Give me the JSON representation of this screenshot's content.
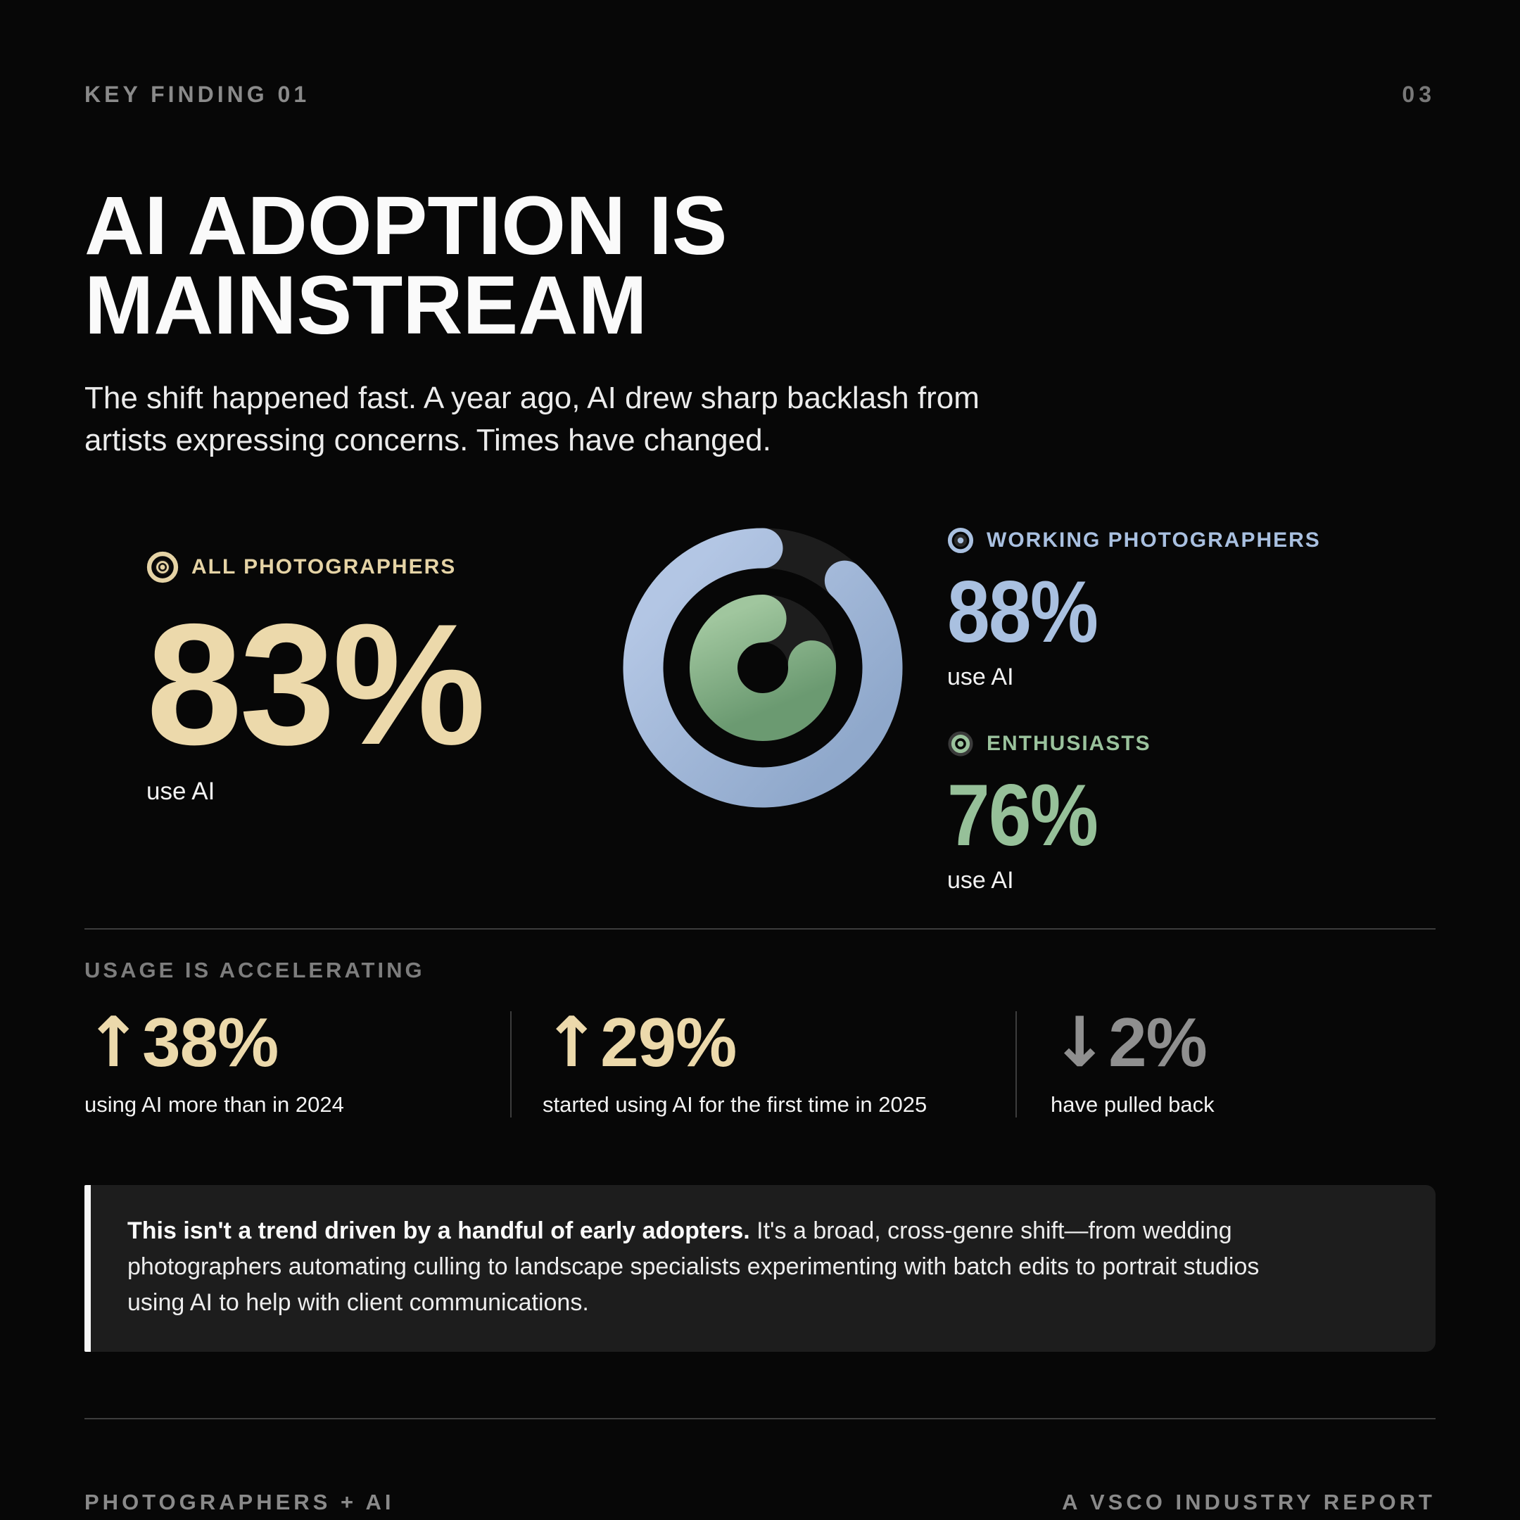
{
  "header": {
    "kicker": "KEY FINDING 01",
    "page_number": "03"
  },
  "title": {
    "line1": "AI ADOPTION IS",
    "line2": "MAINSTREAM"
  },
  "subtitle": {
    "line1": "The shift happened fast. A year ago, AI drew sharp backlash from",
    "line2": "artists expressing concerns. Times have changed."
  },
  "stats": {
    "all_photographers": {
      "label": "ALL PHOTOGRAPHERS",
      "value": "83%",
      "caption": "use AI",
      "color": "#ecd9ab"
    },
    "working_photographers": {
      "label": "WORKING PHOTOGRAPHERS",
      "value": "88%",
      "caption": "use AI",
      "color": "#a9c0e0"
    },
    "enthusiasts": {
      "label": "ENTHUSIASTS",
      "value": "76%",
      "caption": "use AI",
      "color": "#96c099"
    }
  },
  "chart_data": {
    "type": "pie",
    "subtype": "concentric-donut",
    "title": "AI adoption among photographers",
    "legend_position": "right",
    "series": [
      {
        "name": "Working photographers",
        "ring": "outer",
        "value_pct": 88,
        "color": "#a9c0e0"
      },
      {
        "name": "Enthusiasts",
        "ring": "inner",
        "value_pct": 76,
        "color": "#7fa985"
      }
    ],
    "annotation": "All photographers: 83% use AI",
    "track_color": "#1d1d1d"
  },
  "acceleration": {
    "heading": "USAGE IS ACCELERATING",
    "items": [
      {
        "arrow": "↑",
        "value": "38%",
        "caption": "using AI more than in 2024",
        "tone": "tan"
      },
      {
        "arrow": "↑",
        "value": "29%",
        "caption": "started using AI for the first time in 2025",
        "tone": "tan"
      },
      {
        "arrow": "↓",
        "value": "2%",
        "caption": "have pulled back",
        "tone": "gray"
      }
    ]
  },
  "callout": {
    "lead_bold": "This isn't a trend driven by a handful of early adopters.",
    "line1_rest": " It's a broad, cross-genre shift—from wedding",
    "line2": "photographers automating culling to landscape specialists experimenting with batch edits to portrait studios",
    "line3": "using AI to help with client communications."
  },
  "footer": {
    "left": "PHOTOGRAPHERS + AI",
    "right": "A VSCO INDUSTRY REPORT"
  }
}
